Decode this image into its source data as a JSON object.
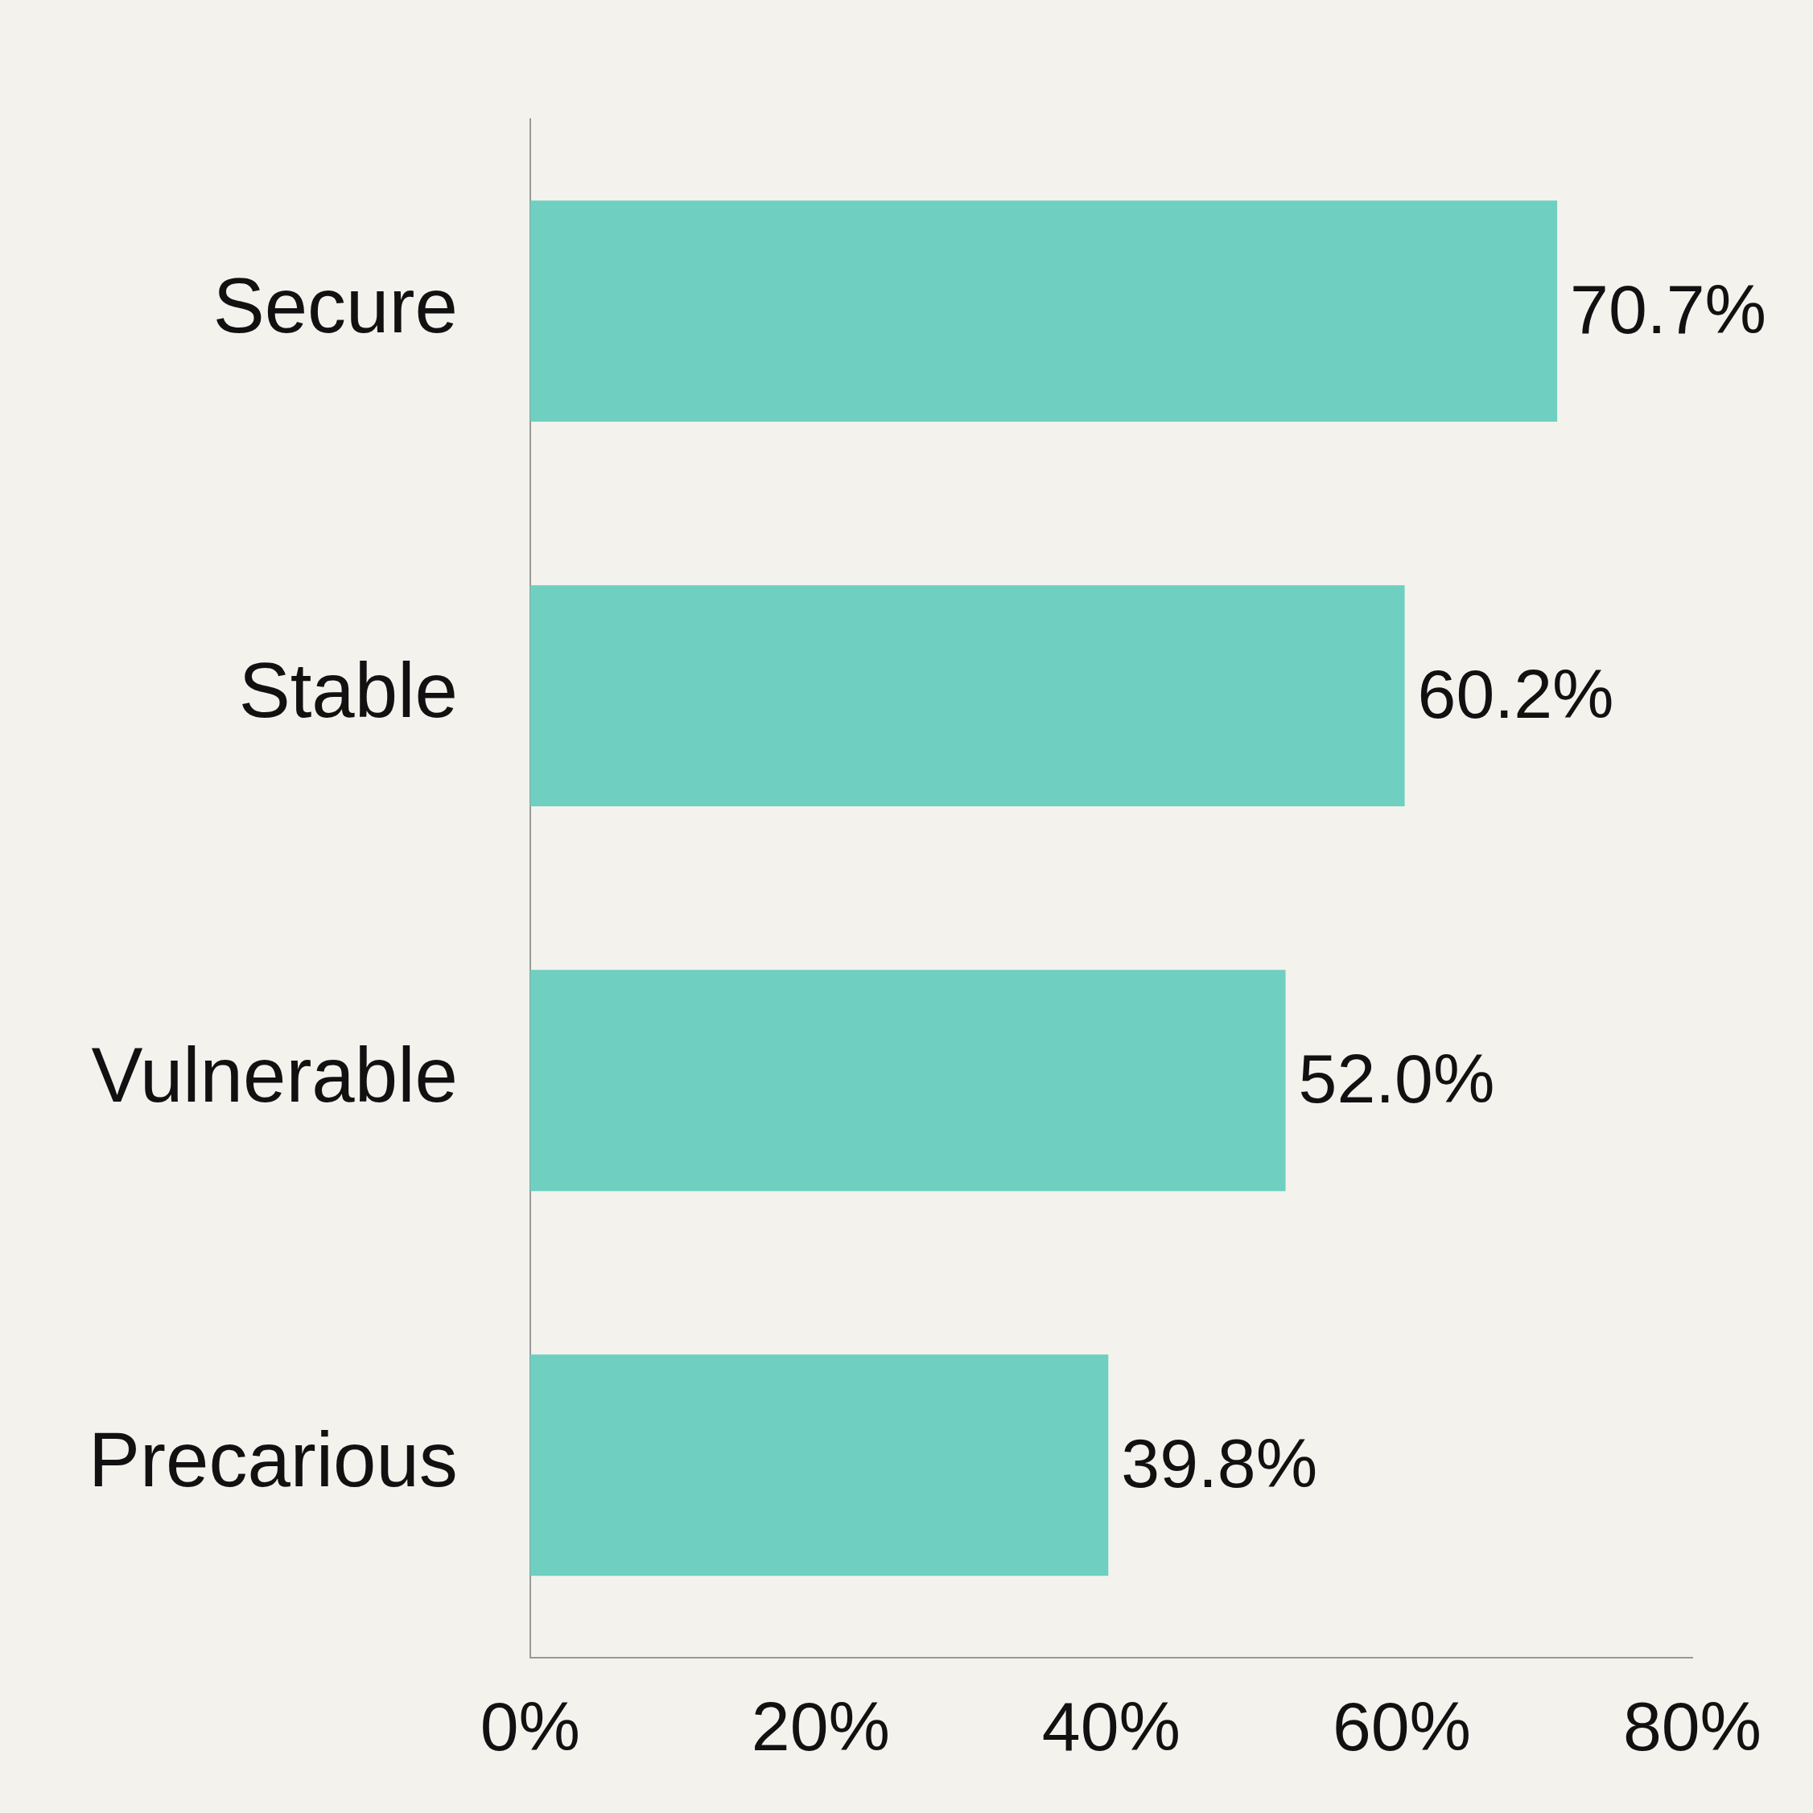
{
  "chart_data": {
    "type": "bar",
    "orientation": "horizontal",
    "categories": [
      "Secure",
      "Stable",
      "Vulnerable",
      "Precarious"
    ],
    "values": [
      70.7,
      60.2,
      52.0,
      39.8
    ],
    "value_labels": [
      "70.7%",
      "60.2%",
      "52.0%",
      "39.8%"
    ],
    "color": "#6fcfc1",
    "xlim": [
      0,
      80
    ],
    "xticks": [
      {
        "value": 0,
        "label": "0%"
      },
      {
        "value": 20,
        "label": "20%"
      },
      {
        "value": 40,
        "label": "40%"
      },
      {
        "value": 60,
        "label": "60%"
      },
      {
        "value": 80,
        "label": "80%"
      }
    ],
    "grid": false,
    "legend": false
  }
}
